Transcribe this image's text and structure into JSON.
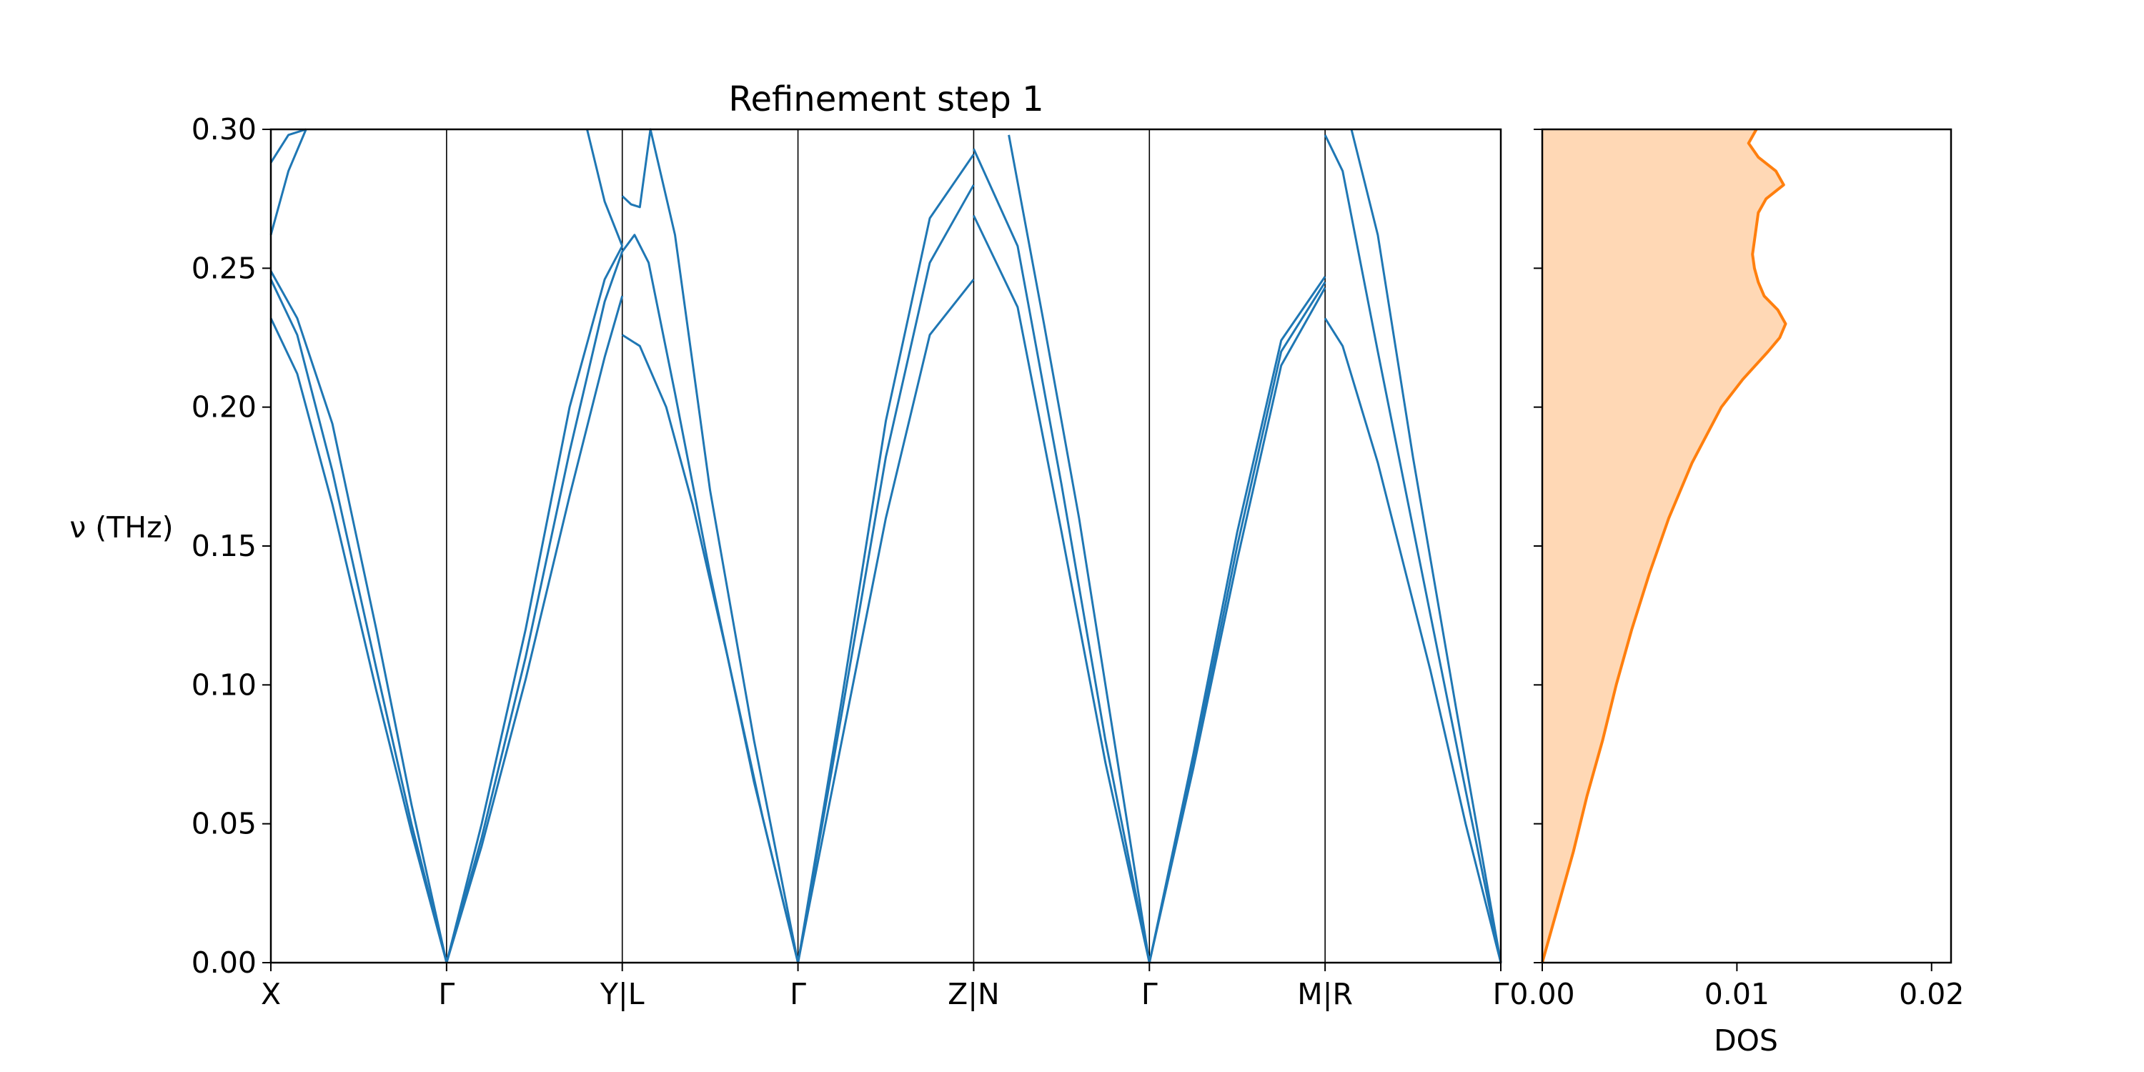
{
  "chart_data": [
    {
      "type": "line",
      "title": "Refinement step 1",
      "ylabel": "ν (THz)",
      "xlabel": "",
      "ylim": [
        0.0,
        0.3
      ],
      "yticks": [
        "0.00",
        "0.05",
        "0.10",
        "0.15",
        "0.20",
        "0.25",
        "0.30"
      ],
      "yticks_values": [
        0.0,
        0.05,
        0.1,
        0.15,
        0.2,
        0.25,
        0.3
      ],
      "xlim": [
        0,
        7
      ],
      "xticks": [
        "X",
        "Γ",
        "Y|L",
        "Γ",
        "Z|N",
        "Γ",
        "M|R",
        "Γ"
      ],
      "xticks_values": [
        0,
        1,
        2,
        3,
        4,
        5,
        6,
        7
      ],
      "color": "#1f77b4",
      "series": [
        {
          "x": [
            0,
            0.15,
            0.35,
            0.6,
            0.8,
            1.0
          ],
          "values": [
            0.232,
            0.212,
            0.165,
            0.098,
            0.047,
            0.0
          ]
        },
        {
          "x": [
            0,
            0.15,
            0.35,
            0.6,
            0.8,
            1.0
          ],
          "values": [
            0.246,
            0.226,
            0.177,
            0.106,
            0.05,
            0.0
          ]
        },
        {
          "x": [
            0,
            0.15,
            0.35,
            0.6,
            0.8,
            1.0
          ],
          "values": [
            0.249,
            0.232,
            0.194,
            0.12,
            0.057,
            0.0
          ]
        },
        {
          "x": [
            0,
            0.1,
            0.2
          ],
          "values": [
            0.262,
            0.285,
            0.3
          ]
        },
        {
          "x": [
            0,
            0.1,
            0.2
          ],
          "values": [
            0.288,
            0.298,
            0.3
          ]
        },
        {
          "x": [
            1.0,
            1.2,
            1.45,
            1.7,
            1.9,
            2.0
          ],
          "values": [
            0.0,
            0.05,
            0.12,
            0.2,
            0.246,
            0.258
          ]
        },
        {
          "x": [
            1.0,
            1.2,
            1.45,
            1.7,
            1.9,
            2.0
          ],
          "values": [
            0.0,
            0.045,
            0.11,
            0.184,
            0.238,
            0.256
          ]
        },
        {
          "x": [
            1.0,
            1.2,
            1.45,
            1.7,
            1.9,
            2.0
          ],
          "values": [
            0.0,
            0.042,
            0.102,
            0.168,
            0.218,
            0.24
          ]
        },
        {
          "x": [
            1.8,
            1.9,
            2.0
          ],
          "values": [
            0.3,
            0.274,
            0.258
          ]
        },
        {
          "x": [
            2.0,
            2.1,
            2.25,
            2.4,
            2.6,
            2.8,
            3.0
          ],
          "values": [
            0.226,
            0.222,
            0.2,
            0.165,
            0.11,
            0.052,
            0.0
          ]
        },
        {
          "x": [
            2.0,
            2.07,
            2.15,
            2.3,
            2.5,
            2.75,
            3.0
          ],
          "values": [
            0.256,
            0.262,
            0.252,
            0.205,
            0.14,
            0.065,
            0.0
          ]
        },
        {
          "x": [
            2.0,
            2.05,
            2.1,
            2.16,
            2.3,
            2.5,
            2.75,
            3.0
          ],
          "values": [
            0.276,
            0.273,
            0.272,
            0.3,
            0.262,
            0.17,
            0.08,
            0.0
          ]
        },
        {
          "x": [
            3.0,
            3.25,
            3.5,
            3.75,
            4.0
          ],
          "values": [
            0.0,
            0.08,
            0.16,
            0.226,
            0.246
          ]
        },
        {
          "x": [
            3.0,
            3.25,
            3.5,
            3.75,
            4.0
          ],
          "values": [
            0.0,
            0.09,
            0.182,
            0.252,
            0.28
          ]
        },
        {
          "x": [
            3.0,
            3.25,
            3.5,
            3.75,
            4.0
          ],
          "values": [
            0.0,
            0.095,
            0.195,
            0.268,
            0.291
          ]
        },
        {
          "x": [
            4.0,
            4.25,
            4.5,
            4.75,
            5.0
          ],
          "values": [
            0.269,
            0.236,
            0.155,
            0.072,
            0.0
          ]
        },
        {
          "x": [
            4.0,
            4.25,
            4.5,
            4.75,
            5.0
          ],
          "values": [
            0.293,
            0.258,
            0.172,
            0.08,
            0.0
          ]
        },
        {
          "x": [
            4.2,
            4.4,
            4.6,
            4.8,
            5.0
          ],
          "values": [
            0.298,
            0.23,
            0.16,
            0.08,
            0.0
          ]
        },
        {
          "x": [
            5.0,
            5.25,
            5.5,
            5.75,
            6.0
          ],
          "values": [
            0.0,
            0.075,
            0.155,
            0.224,
            0.247
          ]
        },
        {
          "x": [
            5.0,
            5.25,
            5.5,
            5.75,
            6.0
          ],
          "values": [
            0.0,
            0.072,
            0.15,
            0.22,
            0.245
          ]
        },
        {
          "x": [
            5.0,
            5.25,
            5.5,
            5.75,
            6.0
          ],
          "values": [
            0.0,
            0.07,
            0.145,
            0.215,
            0.243
          ]
        },
        {
          "x": [
            6.0,
            6.1,
            6.3,
            6.6,
            6.8,
            7.0
          ],
          "values": [
            0.232,
            0.222,
            0.18,
            0.105,
            0.05,
            0.0
          ]
        },
        {
          "x": [
            6.0,
            6.1,
            6.3,
            6.6,
            6.8,
            7.0
          ],
          "values": [
            0.298,
            0.285,
            0.22,
            0.125,
            0.062,
            0.0
          ]
        },
        {
          "x": [
            6.15,
            6.3,
            6.5,
            6.75,
            7.0
          ],
          "values": [
            0.3,
            0.262,
            0.182,
            0.09,
            0.0
          ]
        }
      ]
    },
    {
      "type": "area",
      "title": "",
      "xlabel": "DOS",
      "ylabel": "",
      "xlim": [
        0.0,
        0.021
      ],
      "xticks": [
        "0.00",
        "0.01",
        "0.02"
      ],
      "xticks_values": [
        0.0,
        0.01,
        0.02
      ],
      "ylim": [
        0.0,
        0.3
      ],
      "line_color": "#ff7f0e",
      "fill_color": "#ffd8b5",
      "series": [
        {
          "y": [
            0.0,
            0.01,
            0.02,
            0.04,
            0.06,
            0.08,
            0.1,
            0.12,
            0.14,
            0.16,
            0.18,
            0.2,
            0.21,
            0.22,
            0.225,
            0.23,
            0.235,
            0.24,
            0.245,
            0.25,
            0.255,
            0.26,
            0.265,
            0.27,
            0.275,
            0.28,
            0.285,
            0.29,
            0.295,
            0.3
          ],
          "values": [
            0.0,
            0.0004,
            0.0008,
            0.0016,
            0.0023,
            0.0031,
            0.0038,
            0.0046,
            0.0055,
            0.0065,
            0.0077,
            0.0092,
            0.0103,
            0.0116,
            0.0122,
            0.0125,
            0.0121,
            0.0114,
            0.0111,
            0.0109,
            0.0108,
            0.0109,
            0.011,
            0.0111,
            0.0115,
            0.0124,
            0.012,
            0.0111,
            0.0106,
            0.011
          ]
        }
      ]
    }
  ]
}
